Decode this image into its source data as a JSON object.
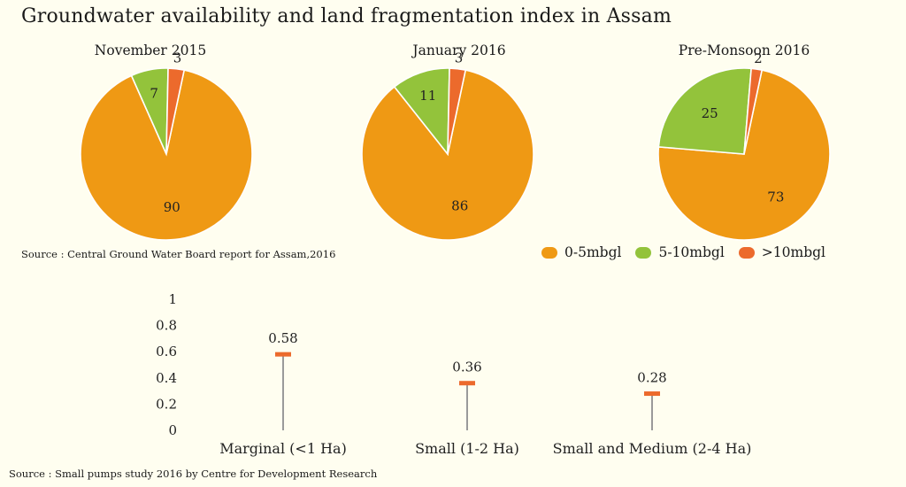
{
  "title": "Groundwater availability and land fragmentation index in Assam",
  "colors": {
    "range_0_5": "#ef9914",
    "range_5_10": "#93c33b",
    "range_gt_10": "#ec6a2c",
    "stem": "#9a9a9a",
    "marker": "#ec6a2c"
  },
  "chart_data": [
    {
      "type": "pie",
      "title": "November 2015",
      "labels": [
        "0-5mbgl",
        "5-10mbgl",
        ">10mbgl"
      ],
      "values": [
        90,
        7,
        3
      ]
    },
    {
      "type": "pie",
      "title": "January 2016",
      "labels": [
        "0-5mbgl",
        "5-10mbgl",
        ">10mbgl"
      ],
      "values": [
        86,
        11,
        3
      ]
    },
    {
      "type": "pie",
      "title": "Pre-Monsoon 2016",
      "labels": [
        "0-5mbgl",
        "5-10mbgl",
        ">10mbgl"
      ],
      "values": [
        73,
        25,
        2
      ]
    },
    {
      "type": "bar",
      "subtype": "lollipop",
      "title": "",
      "categories": [
        "Marginal (<1 Ha)",
        "Small (1-2 Ha)",
        "Small and Medium (2-4 Ha)"
      ],
      "values": [
        0.58,
        0.36,
        0.28
      ],
      "ylim": [
        0,
        1
      ],
      "yticks": [
        "0",
        "0.2",
        "0.4",
        "0.6",
        "0.8",
        "1"
      ],
      "xlabel": "",
      "ylabel": ""
    }
  ],
  "legend": [
    {
      "label": "0-5mbgl"
    },
    {
      "label": "5-10mbgl"
    },
    {
      "label": ">10mbgl"
    }
  ],
  "sources": {
    "pies": "Source : Central Ground Water Board report for Assam,2016",
    "lollipop": "Source : Small pumps study 2016 by Centre for Development Research"
  }
}
